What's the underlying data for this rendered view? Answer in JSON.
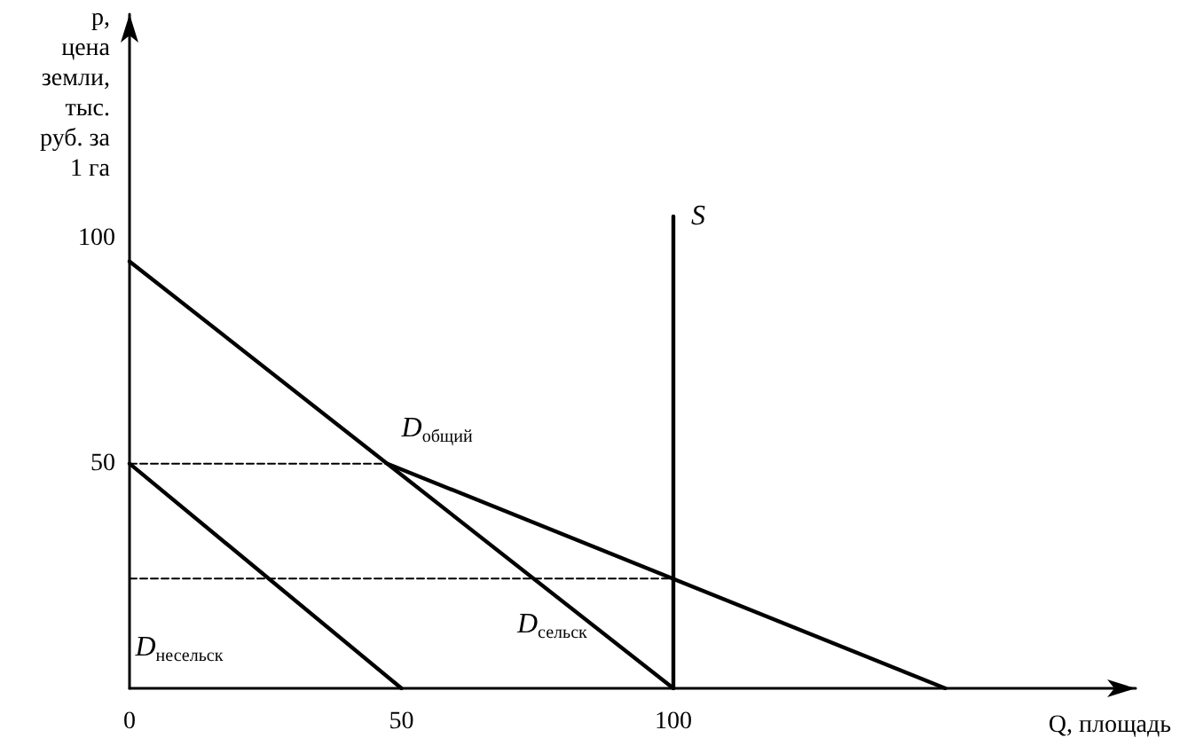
{
  "chart_data": {
    "type": "line",
    "xlabel": "Q, площадь",
    "ylabel": "p,\nцена\nземли,\nтыс.\nруб. за\n1 га",
    "xlim": [
      0,
      185
    ],
    "ylim": [
      0,
      150
    ],
    "xticks": [
      0,
      50,
      100
    ],
    "yticks": [
      50,
      100
    ],
    "grid": false,
    "legend": false,
    "marker": "none",
    "series": [
      {
        "name": "S",
        "color": "#000000",
        "x": [
          100,
          100
        ],
        "values": [
          0,
          105
        ]
      },
      {
        "name": "D$_{общий}$",
        "color": "#000000",
        "x": [
          47.4,
          150
        ],
        "values": [
          50,
          0
        ]
      },
      {
        "name": "D$_{сельск}$",
        "color": "#000000",
        "x": [
          0,
          100
        ],
        "values": [
          95,
          0
        ]
      },
      {
        "name": "D$_{несельск}$",
        "color": "#000000",
        "x": [
          0,
          50
        ],
        "values": [
          50,
          0
        ]
      },
      {
        "color": "#000000",
        "line_style": "dashed",
        "x": [
          0,
          47.4
        ],
        "values": [
          50,
          50
        ]
      },
      {
        "color": "#000000",
        "line_style": "dashed",
        "x": [
          0,
          100
        ],
        "values": [
          24.4,
          24.4
        ]
      }
    ]
  }
}
